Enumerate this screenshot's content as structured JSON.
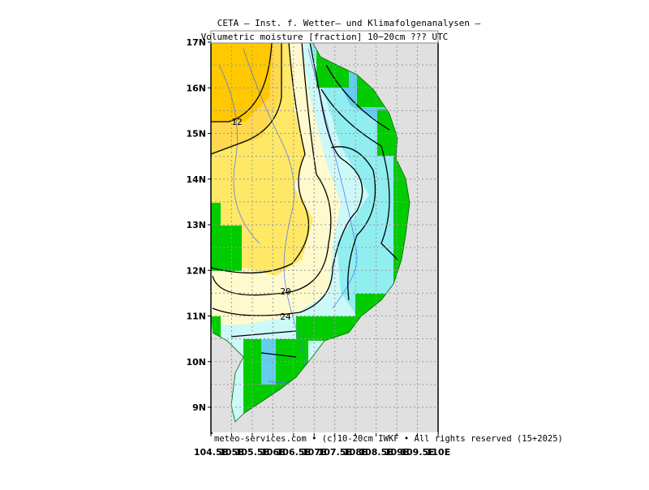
{
  "header": {
    "title": "CETA – Inst. f. Wetter– und Klimafolgenanalysen –",
    "subtitle": "Volumetric moisture [fraction] 10−20cm ??? UTC"
  },
  "axes": {
    "lat_labels": [
      "9N",
      "10N",
      "11N",
      "12N",
      "13N",
      "14N",
      "15N",
      "16N",
      "17N"
    ],
    "lon_labels": [
      "104.5E",
      "105E",
      "105.5E",
      "106E",
      "106.5E",
      "107E",
      "107.5E",
      "108E",
      "108.5E",
      "109E",
      "109.5E",
      "110E"
    ]
  },
  "contour_labels": [
    "12",
    "20",
    "24"
  ],
  "footer": "meteo-services.com • (c)10-20cm IWKF • All rights reserved (15+2025)"
}
